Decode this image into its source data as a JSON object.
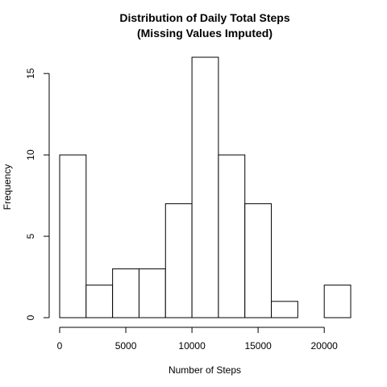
{
  "chart_data": {
    "type": "bar",
    "title": "Distribution of Daily Total Steps",
    "subtitle": "(Missing Values Imputed)",
    "xlabel": "Number of Steps",
    "ylabel": "Frequency",
    "bin_edges": [
      0,
      2000,
      4000,
      6000,
      8000,
      10000,
      12000,
      14000,
      16000,
      18000,
      20000,
      22000
    ],
    "values": [
      10,
      2,
      3,
      3,
      7,
      16,
      10,
      7,
      1,
      0,
      2
    ],
    "xlim": [
      0,
      22000
    ],
    "ylim": [
      0,
      16
    ],
    "x_ticks": [
      0,
      5000,
      10000,
      15000,
      20000
    ],
    "y_ticks": [
      0,
      5,
      10,
      15
    ],
    "grid": false,
    "legend": "none",
    "colors": {
      "bar_fill": "#ffffff",
      "bar_stroke": "#000000"
    }
  }
}
